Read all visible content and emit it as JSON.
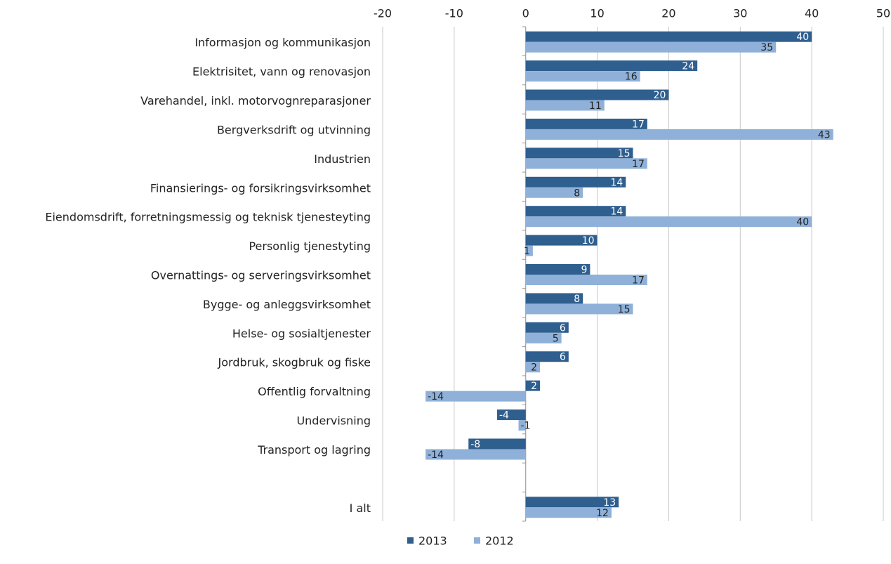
{
  "chart_data": {
    "type": "hbar",
    "categories": [
      "Informasjon og kommunikasjon",
      "Elektrisitet, vann og renovasjon",
      "Varehandel, inkl. motorvognreparasjoner",
      "Bergverksdrift og utvinning",
      "Industrien",
      "Finansierings- og forsikringsvirksomhet",
      "Eiendomsdrift, forretningsmessig og teknisk tjenesteyting",
      "Personlig tjenestyting",
      "Overnattings- og serveringsvirksomhet",
      "Bygge- og anleggsvirksomhet",
      "Helse- og sosialtjenester",
      "Jordbruk, skogbruk og fiske",
      "Offentlig forvaltning",
      "Undervisning",
      "Transport og lagring",
      null,
      "I alt"
    ],
    "series": [
      {
        "name": "2013",
        "color": "#2f5f8f",
        "values": [
          40,
          24,
          20,
          17,
          15,
          14,
          14,
          10,
          9,
          8,
          6,
          6,
          2,
          -4,
          -8,
          null,
          13
        ]
      },
      {
        "name": "2012",
        "color": "#8fb1d9",
        "values": [
          35,
          16,
          11,
          43,
          17,
          8,
          40,
          1,
          17,
          15,
          5,
          2,
          -14,
          -1,
          -14,
          null,
          12
        ]
      }
    ],
    "xlim": [
      -20,
      50
    ],
    "xticks": [
      -20,
      -10,
      0,
      10,
      20,
      30,
      40,
      50
    ],
    "grid": true,
    "legend": "bottom"
  }
}
